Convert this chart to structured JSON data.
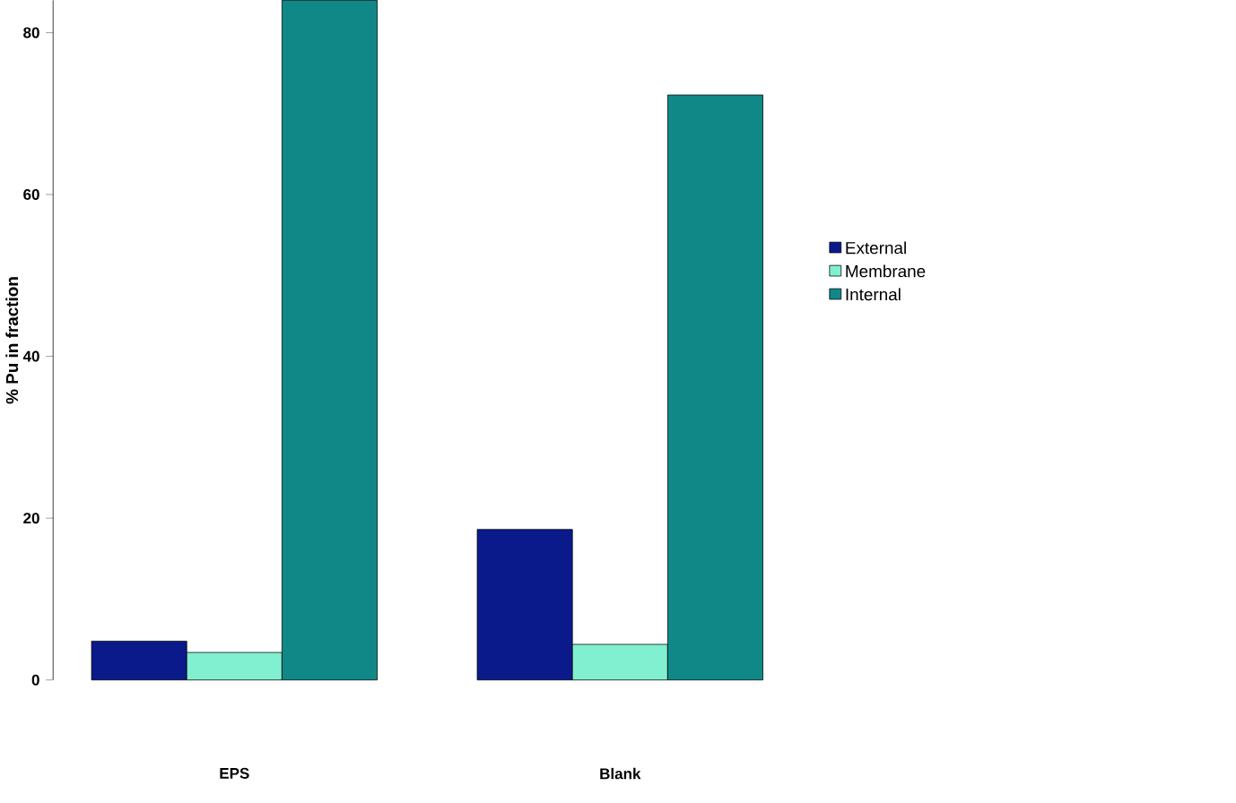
{
  "chart_data": {
    "type": "bar",
    "ylabel": "% Pu in fraction",
    "categories": [
      "EPS",
      "Blank"
    ],
    "series": [
      {
        "name": "External",
        "color": "#0a1a8a",
        "values": [
          4.8,
          18.6
        ]
      },
      {
        "name": "Membrane",
        "color": "#80f0d0",
        "values": [
          3.4,
          4.4
        ]
      },
      {
        "name": "Internal",
        "color": "#108888",
        "values": [
          84,
          72.3
        ]
      }
    ],
    "ylim": [
      0,
      84
    ],
    "yticks": [
      0,
      20,
      40,
      60,
      80
    ],
    "legend": "right"
  }
}
